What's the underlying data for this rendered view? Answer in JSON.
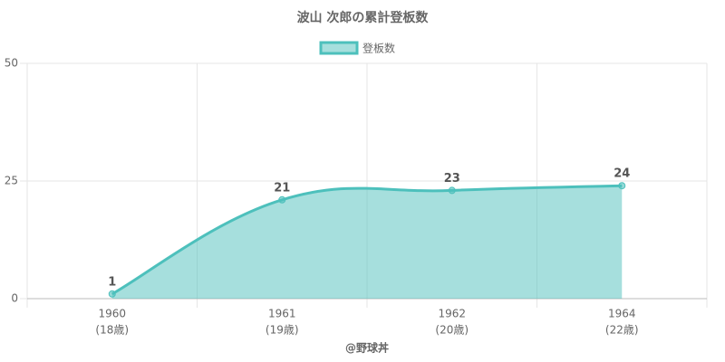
{
  "chart_data": {
    "type": "line",
    "title": "波山 次郎の累計登板数",
    "categories": [
      [
        "1960",
        "(18歳)"
      ],
      [
        "1961",
        "(19歳)"
      ],
      [
        "1962",
        "(20歳)"
      ],
      [
        "1964",
        "(22歳)"
      ]
    ],
    "series": [
      {
        "name": "登板数",
        "color": "#4dc0bc",
        "values": [
          1,
          21,
          23,
          24
        ]
      }
    ],
    "xlabel": "@野球丼",
    "ylim": [
      0,
      50
    ],
    "yticks": [
      0,
      25,
      50
    ],
    "grid": true,
    "fill": true,
    "legend": "top"
  }
}
